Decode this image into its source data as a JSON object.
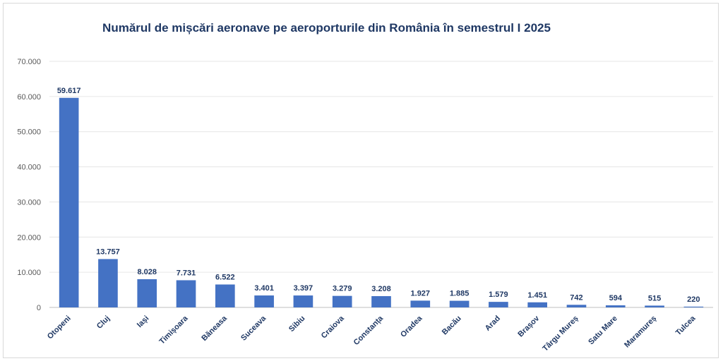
{
  "chart_data": {
    "type": "bar",
    "title": "Numărul de mișcări aeronave pe aeroporturile din România în semestrul I 2025",
    "categories": [
      "Otopeni",
      "Cluj",
      "Iași",
      "Timișoara",
      "Băneasa",
      "Suceava",
      "Sibiu",
      "Craiova",
      "Constanța",
      "Oradea",
      "Bacău",
      "Arad",
      "Brașov",
      "Târgu Mureș",
      "Satu Mare",
      "Maramureș",
      "Tulcea"
    ],
    "values": [
      59617,
      13757,
      8028,
      7731,
      6522,
      3401,
      3397,
      3279,
      3208,
      1927,
      1885,
      1579,
      1451,
      742,
      594,
      515,
      220
    ],
    "data_labels": [
      "59.617",
      "13.757",
      "8.028",
      "7.731",
      "6.522",
      "3.401",
      "3.397",
      "3.279",
      "3.208",
      "1.927",
      "1.885",
      "1.579",
      "1.451",
      "742",
      "594",
      "515",
      "220"
    ],
    "y_ticks": [
      0,
      10000,
      20000,
      30000,
      40000,
      50000,
      60000,
      70000
    ],
    "y_tick_labels": [
      "0",
      "10.000",
      "20.000",
      "30.000",
      "40.000",
      "50.000",
      "60.000",
      "70.000"
    ],
    "ylim": [
      0,
      70000
    ],
    "xlabel": "",
    "ylabel": "",
    "grid": true,
    "legend": "none",
    "bar_color": "#4472c4"
  }
}
